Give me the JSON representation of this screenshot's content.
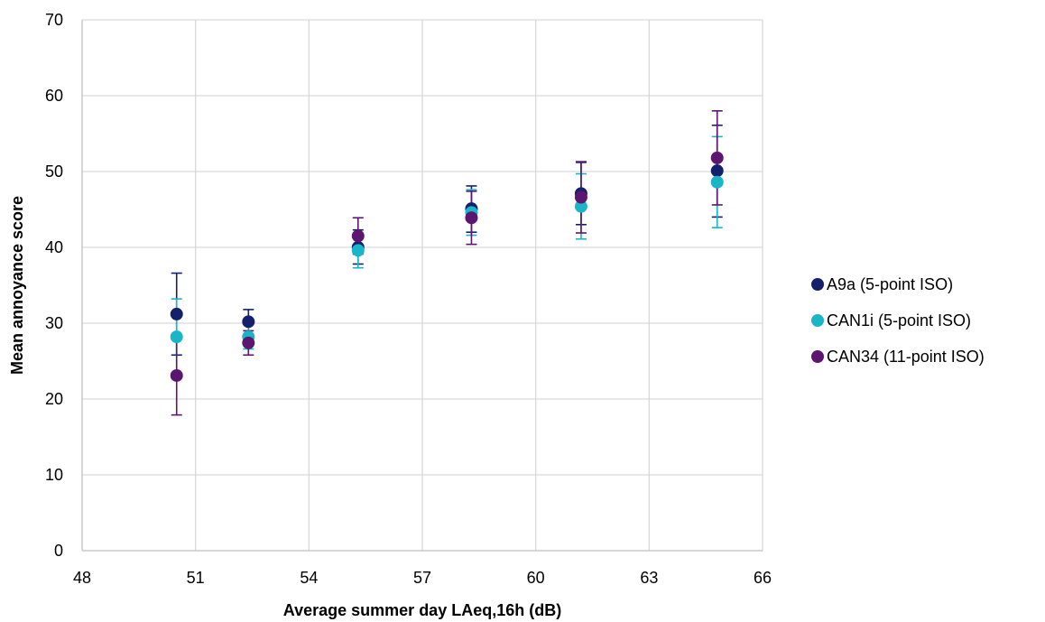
{
  "chart_data": {
    "type": "scatter",
    "title": "",
    "xlabel": "Average summer day LAeq,16h (dB)",
    "ylabel": "Mean annoyance score",
    "xlim": [
      48,
      66
    ],
    "ylim": [
      0,
      70
    ],
    "xticks": [
      48,
      51,
      54,
      57,
      60,
      63,
      66
    ],
    "yticks": [
      0,
      10,
      20,
      30,
      40,
      50,
      60,
      70
    ],
    "grid": true,
    "legend_position": "right",
    "error_bars": true,
    "series": [
      {
        "name": "A9a (5-point ISO)",
        "color": "#14206b",
        "points": [
          {
            "x": 50.5,
            "y": 31.2,
            "low": 25.8,
            "high": 36.6
          },
          {
            "x": 52.4,
            "y": 30.2,
            "low": 28.5,
            "high": 31.8
          },
          {
            "x": 55.3,
            "y": 40.0,
            "low": 37.8,
            "high": 42.3
          },
          {
            "x": 58.3,
            "y": 45.1,
            "low": 42.0,
            "high": 48.1
          },
          {
            "x": 61.2,
            "y": 47.1,
            "low": 43.0,
            "high": 51.2
          },
          {
            "x": 64.8,
            "y": 50.1,
            "low": 44.0,
            "high": 56.1
          }
        ]
      },
      {
        "name": "CAN1i (5-point ISO)",
        "color": "#1ab5c6",
        "points": [
          {
            "x": 50.5,
            "y": 28.2,
            "low": 23.2,
            "high": 33.2
          },
          {
            "x": 52.4,
            "y": 28.2,
            "low": 26.6,
            "high": 29.8
          },
          {
            "x": 55.3,
            "y": 39.6,
            "low": 37.3,
            "high": 41.9
          },
          {
            "x": 58.3,
            "y": 44.6,
            "low": 41.6,
            "high": 47.6
          },
          {
            "x": 61.2,
            "y": 45.4,
            "low": 41.1,
            "high": 49.7
          },
          {
            "x": 64.8,
            "y": 48.6,
            "low": 42.6,
            "high": 54.6
          }
        ]
      },
      {
        "name": "CAN34 (11-point ISO)",
        "color": "#5c1670",
        "points": [
          {
            "x": 50.5,
            "y": 23.1,
            "low": 17.9,
            "high": 28.3
          },
          {
            "x": 52.4,
            "y": 27.4,
            "low": 25.8,
            "high": 29.0
          },
          {
            "x": 55.3,
            "y": 41.5,
            "low": 39.1,
            "high": 43.9
          },
          {
            "x": 58.3,
            "y": 43.9,
            "low": 40.4,
            "high": 47.4
          },
          {
            "x": 61.2,
            "y": 46.6,
            "low": 41.9,
            "high": 51.3
          },
          {
            "x": 64.8,
            "y": 51.8,
            "low": 45.6,
            "high": 58.0
          }
        ]
      }
    ]
  }
}
